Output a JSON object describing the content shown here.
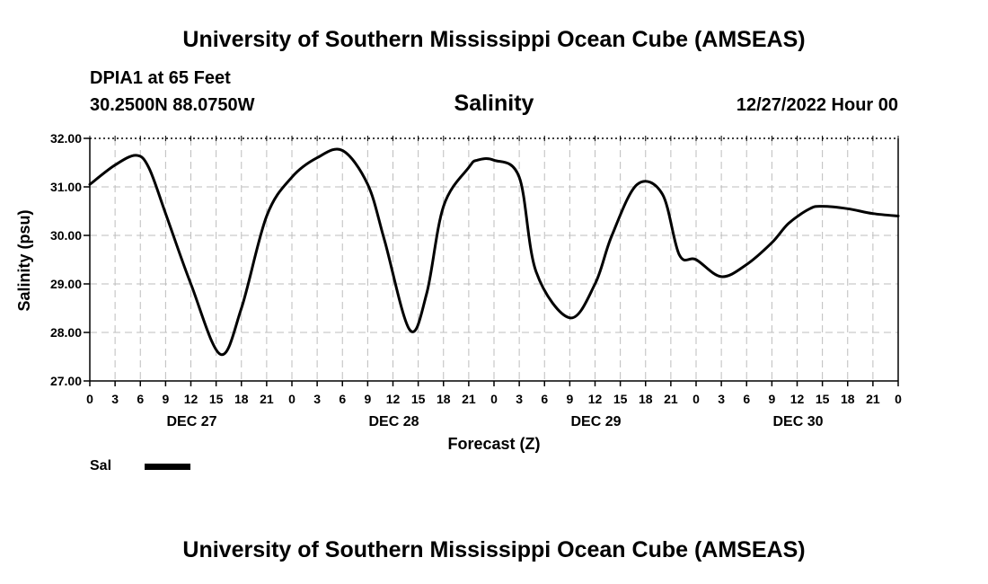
{
  "header": {
    "title": "University of Southern Mississippi Ocean Cube (AMSEAS)",
    "station": "DPIA1 at 65 Feet",
    "coords": "30.2500N  88.0750W",
    "run_time": "12/27/2022 Hour 00"
  },
  "footer": {
    "title": "University of Southern Mississippi Ocean Cube (AMSEAS)"
  },
  "legend": {
    "label": "Sal",
    "color": "#000000"
  },
  "chart_data": {
    "type": "line",
    "title": "Salinity",
    "xlabel": "Forecast (Z)",
    "ylabel": "Salinity (psu)",
    "ylim": [
      27,
      32
    ],
    "yticks": [
      "27.00",
      "28.00",
      "29.00",
      "30.00",
      "31.00",
      "32.00"
    ],
    "xlim": [
      0,
      96
    ],
    "xtick_step_hours": 3,
    "xtick_labels": [
      "0",
      "3",
      "6",
      "9",
      "12",
      "15",
      "18",
      "21",
      "0",
      "3",
      "6",
      "9",
      "12",
      "15",
      "18",
      "21",
      "0",
      "3",
      "6",
      "9",
      "12",
      "15",
      "18",
      "21",
      "0",
      "3",
      "6",
      "9",
      "12",
      "15",
      "18",
      "21",
      "0"
    ],
    "day_labels": [
      {
        "hour": 12,
        "label": "DEC 27"
      },
      {
        "hour": 36,
        "label": "DEC 28"
      },
      {
        "hour": 60,
        "label": "DEC 29"
      },
      {
        "hour": 84,
        "label": "DEC 30"
      }
    ],
    "grid": true,
    "series": [
      {
        "name": "Sal",
        "x": [
          0,
          3,
          5.5,
          7,
          9,
          12,
          15.5,
          18,
          21,
          24,
          27,
          30,
          33,
          35,
          38,
          40,
          42,
          45,
          46,
          48,
          51,
          53,
          57,
          60,
          62,
          65,
          68,
          70,
          72,
          75,
          78,
          81,
          83,
          85.5,
          87,
          90,
          93,
          96
        ],
        "values": [
          31.05,
          31.45,
          31.65,
          31.4,
          30.45,
          29.0,
          27.55,
          28.5,
          30.4,
          31.2,
          31.6,
          31.75,
          31.05,
          29.9,
          28.05,
          28.8,
          30.6,
          31.4,
          31.55,
          31.55,
          31.2,
          29.25,
          28.3,
          29.0,
          30.0,
          31.05,
          30.85,
          29.6,
          29.5,
          29.15,
          29.4,
          29.85,
          30.25,
          30.55,
          30.6,
          30.55,
          30.45,
          30.4
        ]
      }
    ]
  }
}
